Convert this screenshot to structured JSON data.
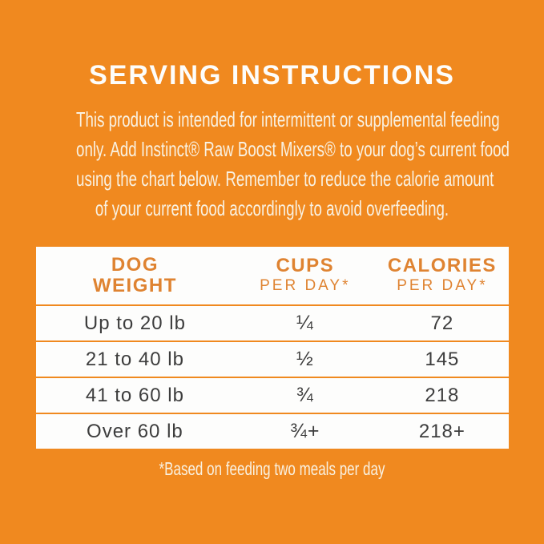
{
  "colors": {
    "background": "#F0891F",
    "accent": "#DF8331",
    "table_background": "#FDFDFC",
    "row_text": "#3D3D3D",
    "title_text": "#FDFDFB",
    "intro_text": "#F9F1E1"
  },
  "title": "SERVING INSTRUCTIONS",
  "intro": {
    "lines": [
      "This product is intended for intermittent or supplemental feeding",
      "only. Add Instinct® Raw Boost Mixers® to your dog’s current food",
      "using the chart below. Remember to reduce the calorie amount",
      "of your current food accordingly to avoid overfeeding."
    ]
  },
  "table": {
    "columns": [
      {
        "line1": "DOG",
        "line2": "WEIGHT"
      },
      {
        "line1": "CUPS",
        "line2": "PER DAY*"
      },
      {
        "line1": "CALORIES",
        "line2": "PER DAY*"
      }
    ],
    "rows": [
      {
        "weight": "Up to 20 lb",
        "cups": "¼",
        "calories": "72"
      },
      {
        "weight": "21 to 40 lb",
        "cups": "½",
        "calories": "145"
      },
      {
        "weight": "41 to 60 lb",
        "cups": "¾",
        "calories": "218"
      },
      {
        "weight": "Over 60 lb",
        "cups": "¾+",
        "calories": "218+"
      }
    ]
  },
  "footnote": "*Based on feeding two meals per day"
}
